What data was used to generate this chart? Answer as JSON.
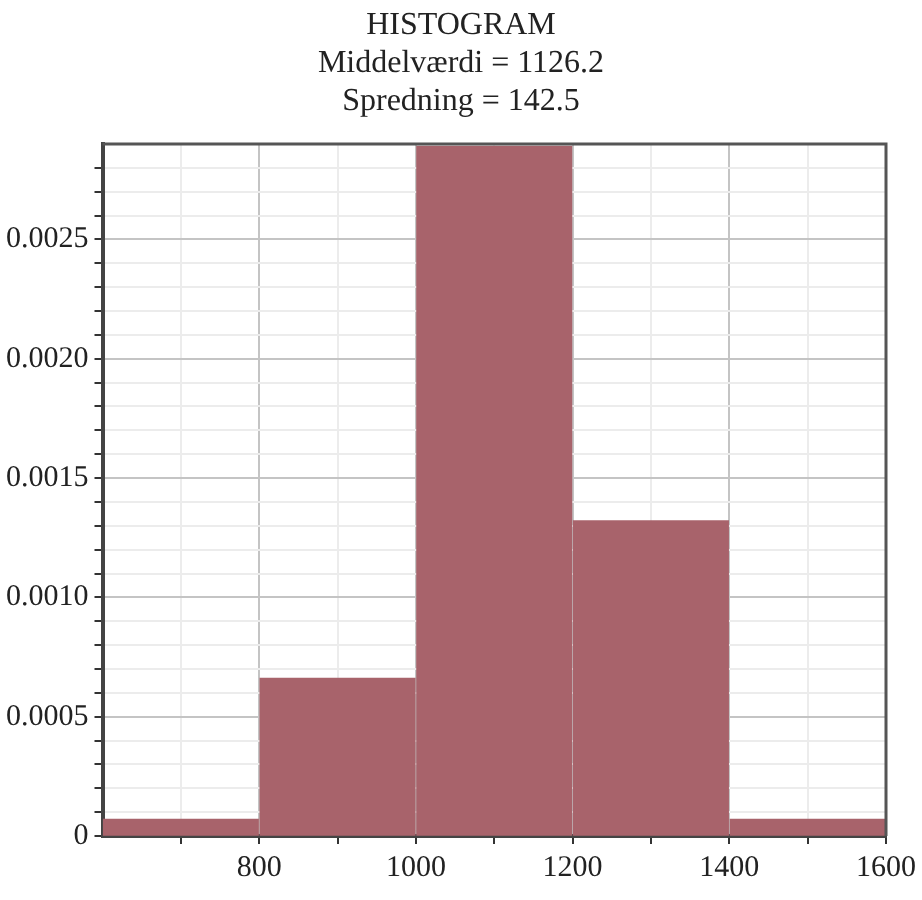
{
  "chart_data": {
    "type": "histogram",
    "title": "HISTOGRAM",
    "subtitle": "Middelværdi = 1126.2",
    "annotations": [
      "Spredning = 142.5"
    ],
    "bins": [
      600,
      800,
      1000,
      1200,
      1400,
      1600
    ],
    "values": [
      7e-05,
      0.00066,
      0.00289,
      0.00132,
      7e-05
    ],
    "color": "#a8636b",
    "xlim": [
      600,
      1600
    ],
    "xticks": [
      {
        "value": 700,
        "label": null
      },
      800,
      {
        "value": 900,
        "label": null
      },
      1000,
      {
        "value": 1100,
        "label": null
      },
      1200,
      {
        "value": 1300,
        "label": null
      },
      1400,
      {
        "value": 1500,
        "label": null
      },
      1600
    ],
    "ylim": [
      0,
      0.0029
    ],
    "yticks": [
      0,
      {
        "value": 0.0001,
        "label": null
      },
      {
        "value": 0.0002,
        "label": null
      },
      {
        "value": 0.0003,
        "label": null
      },
      {
        "value": 0.0004,
        "label": null
      },
      0.0005,
      {
        "value": 0.0006,
        "label": null
      },
      {
        "value": 0.0007,
        "label": null
      },
      {
        "value": 0.0008,
        "label": null
      },
      {
        "value": 0.0009,
        "label": null
      },
      {
        "value": 0.001,
        "label": "0.0010"
      },
      {
        "value": 0.0011,
        "label": null
      },
      {
        "value": 0.0012,
        "label": null
      },
      {
        "value": 0.0013,
        "label": null
      },
      {
        "value": 0.0014,
        "label": null
      },
      0.0015,
      {
        "value": 0.0016,
        "label": null
      },
      {
        "value": 0.0017,
        "label": null
      },
      {
        "value": 0.0018,
        "label": null
      },
      {
        "value": 0.0019,
        "label": null
      },
      {
        "value": 0.002,
        "label": "0.0020"
      },
      {
        "value": 0.0021,
        "label": null
      },
      {
        "value": 0.0022,
        "label": null
      },
      {
        "value": 0.0023,
        "label": null
      },
      {
        "value": 0.0024,
        "label": null
      },
      0.0025,
      {
        "value": 0.0026,
        "label": null
      },
      {
        "value": 0.0027,
        "label": null
      },
      {
        "value": 0.0028,
        "label": null
      }
    ],
    "grid": true,
    "legend": false
  }
}
